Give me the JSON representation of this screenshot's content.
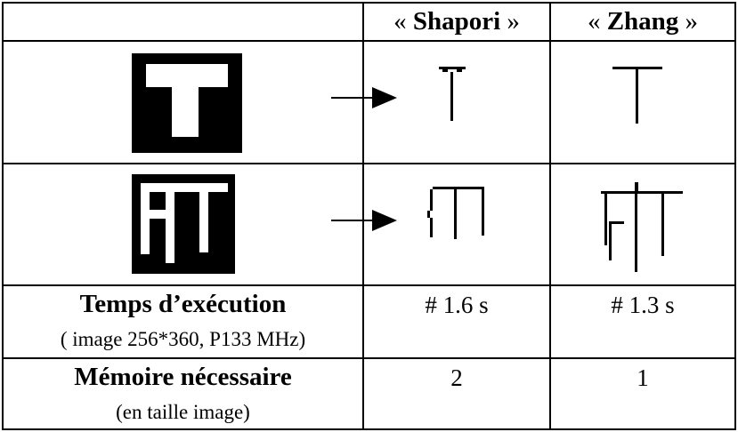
{
  "header": {
    "col_shapori": "Shapori",
    "col_zhang": "Zhang",
    "quote_open": "«",
    "quote_close": "»"
  },
  "rows": {
    "execution": {
      "label": "Temps d’exécution",
      "sublabel": "( image 256*360, P133 MHz)",
      "shapori": "# 1.6 s",
      "zhang": "# 1.3 s"
    },
    "memory": {
      "label": "Mémoire nécessaire",
      "sublabel": "(en taille image)",
      "shapori": "2",
      "zhang": "1"
    }
  },
  "images": {
    "row1_input": "letter-T-block-image",
    "row1_shapori": "skeleton-T-shapori",
    "row1_zhang": "skeleton-T-zhang",
    "row2_input": "letters-FT-block-image",
    "row2_shapori": "skeleton-FT-shapori",
    "row2_zhang": "skeleton-FT-zhang",
    "arrow": "right-arrow-icon"
  }
}
